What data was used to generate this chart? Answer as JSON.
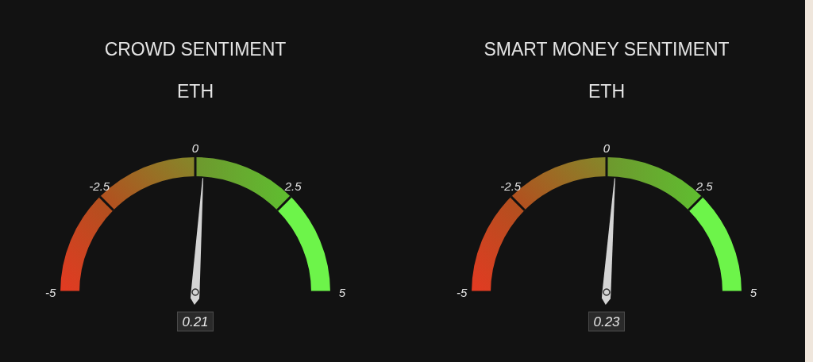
{
  "chart_data": [
    {
      "type": "other",
      "title": "CROWD SENTIMENT",
      "subtitle": "ETH",
      "values": [
        0.21
      ],
      "data_labels": true,
      "annotations": [
        "-5",
        "-2.5",
        "0",
        "2.5",
        "5"
      ]
    },
    {
      "type": "other",
      "title": "SMART MONEY SENTIMENT",
      "subtitle": "ETH",
      "values": [
        0.23
      ],
      "data_labels": true,
      "annotations": [
        "-5",
        "-2.5",
        "0",
        "2.5",
        "5"
      ]
    }
  ]
}
